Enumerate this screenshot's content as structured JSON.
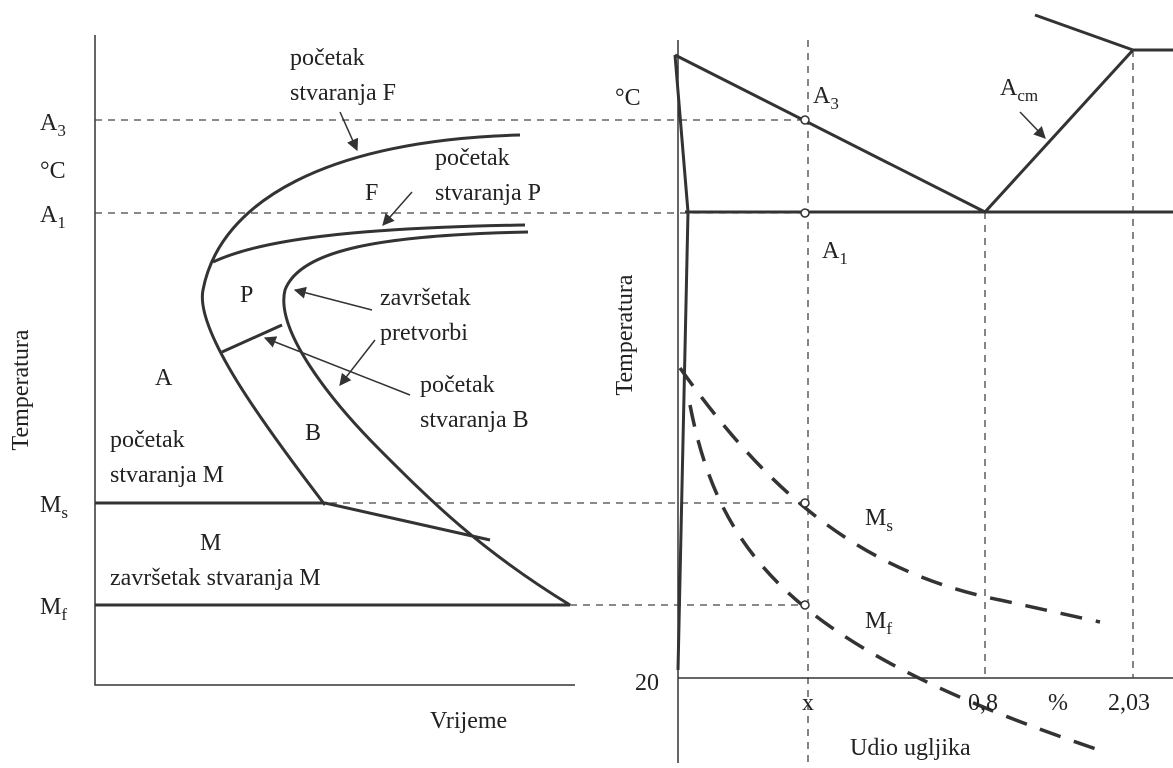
{
  "left": {
    "a3": {
      "base": "A",
      "sub": "3"
    },
    "unit": "°C",
    "a1": {
      "base": "A",
      "sub": "1"
    },
    "axis_y": "Temperatura",
    "ms": {
      "base": "M",
      "sub": "s"
    },
    "mf": {
      "base": "M",
      "sub": "f"
    },
    "labels": {
      "start_f": [
        "početak",
        "stvaranja  F"
      ],
      "f": "F",
      "start_p": [
        "početak",
        "stvaranja  P"
      ],
      "p": "P",
      "end": [
        "završetak",
        "pretvorbi"
      ],
      "a": "A",
      "start_b": [
        "početak",
        "stvaranja  B"
      ],
      "b": "B",
      "start_m": [
        "početak",
        "stvaranja  M"
      ],
      "m": "M",
      "end_m": "završetak  stvaranja  M"
    },
    "axis_x": "Vrijeme"
  },
  "right": {
    "unit": "°C",
    "a3": {
      "base": "A",
      "sub": "3"
    },
    "acm": {
      "base": "A",
      "sub": "cm"
    },
    "a1": {
      "base": "A",
      "sub": "1"
    },
    "axis_y": "Temperatura",
    "ms": {
      "base": "M",
      "sub": "s"
    },
    "mf": {
      "base": "M",
      "sub": "f"
    },
    "y_min": "20",
    "x_label": "x",
    "x_eut": "0,8",
    "x_unit": "%",
    "x_max": "2,03",
    "axis_x": "Udio  ugljika"
  }
}
